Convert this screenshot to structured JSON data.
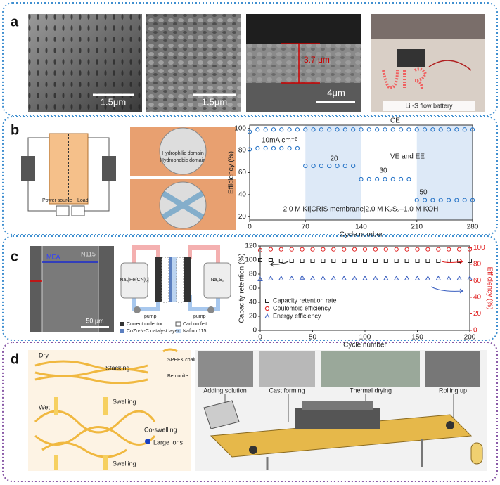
{
  "panels": {
    "a": {
      "label": "a",
      "scale_labels": [
        "1.5μm",
        "1.5μm",
        "3.7 μm",
        "4μm"
      ],
      "photo_caption": "Li -S flow battery"
    },
    "b": {
      "label": "b",
      "schematic_labels": [
        "Power source",
        "Load",
        "Hydrophilic domain",
        "Hydrophobic domain"
      ]
    },
    "c": {
      "label": "c",
      "sem_labels": [
        "N115",
        "MEA",
        "50 μm"
      ],
      "schematic_labels": [
        "Na₄[Fe(CN)₆]",
        "Na₂S₂",
        "pump",
        "pump"
      ],
      "legend": [
        "Current collector",
        "Carbon felt",
        "CoZn-N-C catalyst layer",
        "Nafion 115"
      ]
    },
    "d": {
      "label": "d",
      "schematic_labels": [
        "Dry",
        "Stacking",
        "SPEEK chain",
        "Bentonite",
        "Wet",
        "Swelling",
        "Co-swelling",
        "Large ions",
        "Swelling"
      ],
      "photo_captions": [
        "Adding solution",
        "Cast forming",
        "Thermal drying",
        "Rolling up"
      ]
    }
  },
  "chart_data": [
    {
      "type": "scatter",
      "xlabel": "Cycle number",
      "ylabel": "Efficiency (%)",
      "x": [
        0,
        10,
        20,
        30,
        40,
        50,
        60,
        70,
        80,
        90,
        100,
        110,
        120,
        130,
        140,
        150,
        160,
        170,
        180,
        190,
        200,
        210,
        220,
        230,
        240,
        250,
        260,
        270,
        280
      ],
      "xlim": [
        0,
        280
      ],
      "xticks": [
        0,
        70,
        140,
        210,
        280
      ],
      "ylim": [
        17,
        103
      ],
      "yticks": [
        20,
        40,
        60,
        80,
        100
      ],
      "bands": [
        [
          70,
          140
        ],
        [
          210,
          280
        ]
      ],
      "band_color": "#dde9f7",
      "series": [
        {
          "name": "CE",
          "color": "#1f6fc5",
          "marker": "circle",
          "values": [
            97,
            99,
            99,
            99,
            99,
            99,
            99,
            99,
            99,
            99,
            99,
            99,
            99,
            99,
            99,
            99,
            99,
            99,
            99,
            99,
            99,
            99,
            99,
            99,
            99,
            99,
            99,
            99,
            99
          ]
        },
        {
          "name": "VE and EE",
          "color": "#1f6fc5",
          "marker": "circle",
          "values": [
            81,
            82,
            82,
            82,
            82,
            82,
            82,
            66,
            66,
            66,
            66,
            66,
            66,
            66,
            54,
            54,
            54,
            54,
            54,
            54,
            54,
            35,
            35,
            35,
            35,
            35,
            35,
            35,
            35
          ]
        }
      ],
      "annotations": [
        "10mA cm⁻²",
        "20",
        "30",
        "50",
        "2.0 M KI|CRIS membrane|2.0 M K₂S₂–1.0 M KOH"
      ]
    },
    {
      "type": "scatter",
      "xlabel": "Cycle number",
      "ylabel": "Capacity retention (%)",
      "y2label": "Efficiency (%)",
      "x": [
        0,
        10,
        20,
        30,
        40,
        50,
        60,
        70,
        80,
        90,
        100,
        110,
        120,
        130,
        140,
        150,
        160,
        170,
        180,
        190,
        200
      ],
      "xlim": [
        0,
        200
      ],
      "xticks": [
        0,
        50,
        100,
        150,
        200
      ],
      "ylim": [
        0,
        120
      ],
      "yticks": [
        0,
        20,
        40,
        60,
        80,
        100,
        120
      ],
      "y2lim": [
        0,
        102
      ],
      "y2ticks": [
        0,
        20,
        40,
        60,
        80,
        100
      ],
      "y2color": "#e02020",
      "series": [
        {
          "name": "Capacity retention rate",
          "color": "#222222",
          "marker": "square",
          "values": [
            100,
            100,
            99,
            99,
            99,
            99,
            99,
            99,
            99,
            99,
            99,
            99,
            99,
            99,
            99,
            99,
            99,
            99,
            99,
            99,
            99
          ]
        },
        {
          "name": "Coulombic efficiency",
          "color": "#e02020",
          "marker": "circle",
          "axis": "y2",
          "values": [
            97,
            98,
            98,
            98,
            98,
            98,
            98,
            98,
            98,
            98,
            98,
            98,
            98,
            98,
            98,
            98,
            98,
            98,
            98,
            98,
            98
          ]
        },
        {
          "name": "Energy efficiency",
          "color": "#3a5fc0",
          "marker": "triangle",
          "axis": "y2",
          "values": [
            62,
            63,
            63,
            63,
            64,
            63,
            63,
            63,
            63,
            63,
            63,
            63,
            63,
            63,
            63,
            63,
            63,
            63,
            63,
            63,
            63
          ]
        }
      ],
      "legend": "lower left"
    }
  ]
}
